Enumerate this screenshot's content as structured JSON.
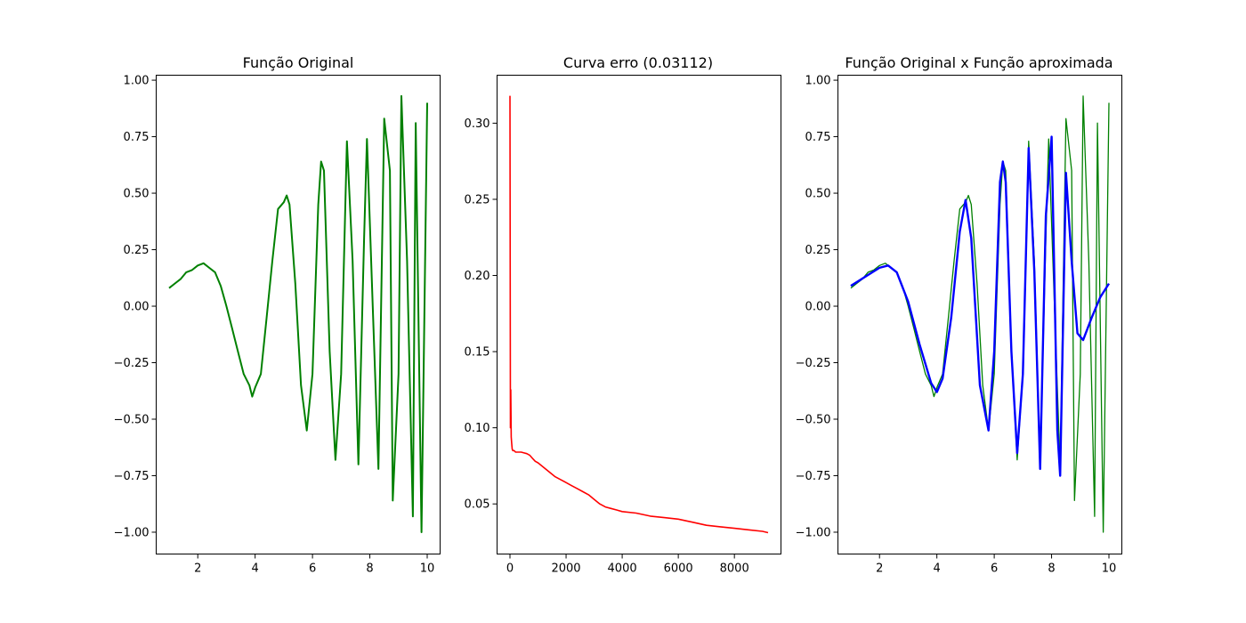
{
  "chart_data": [
    {
      "type": "line",
      "title": "Função Original",
      "xlabel": "",
      "ylabel": "",
      "xlim": [
        0.55,
        10.45
      ],
      "ylim": [
        -1.0966,
        1.022
      ],
      "xticks": [
        2,
        4,
        6,
        8,
        10
      ],
      "yticks": [
        -1.0,
        -0.75,
        -0.5,
        -0.25,
        0.0,
        0.25,
        0.5,
        0.75,
        1.0
      ],
      "xtick_labels": [
        "2",
        "4",
        "6",
        "8",
        "10"
      ],
      "ytick_labels": [
        "−1.00",
        "−0.75",
        "−0.50",
        "−0.25",
        "0.00",
        "0.25",
        "0.50",
        "0.75",
        "1.00"
      ],
      "grid": false,
      "series": [
        {
          "color": "#008000",
          "x": [
            1.0,
            1.2,
            1.4,
            1.6,
            1.8,
            2.0,
            2.2,
            2.4,
            2.6,
            2.8,
            3.0,
            3.2,
            3.4,
            3.6,
            3.8,
            3.9,
            4.0,
            4.2,
            4.4,
            4.6,
            4.8,
            5.0,
            5.1,
            5.2,
            5.4,
            5.6,
            5.8,
            6.0,
            6.2,
            6.3,
            6.4,
            6.6,
            6.8,
            7.0,
            7.2,
            7.4,
            7.6,
            7.8,
            7.9,
            8.1,
            8.3,
            8.5,
            8.7,
            8.8,
            9.0,
            9.1,
            9.3,
            9.5,
            9.6,
            9.8,
            10.0
          ],
          "y": [
            0.08,
            0.1,
            0.12,
            0.15,
            0.16,
            0.18,
            0.19,
            0.17,
            0.15,
            0.09,
            0.0,
            -0.1,
            -0.2,
            -0.3,
            -0.35,
            -0.4,
            -0.36,
            -0.3,
            -0.05,
            0.2,
            0.43,
            0.46,
            0.49,
            0.45,
            0.1,
            -0.35,
            -0.55,
            -0.3,
            0.45,
            0.64,
            0.6,
            -0.2,
            -0.68,
            -0.3,
            0.73,
            0.2,
            -0.7,
            0.3,
            0.74,
            0.0,
            -0.72,
            0.83,
            0.6,
            -0.86,
            -0.3,
            0.93,
            0.2,
            -0.93,
            0.81,
            -1.0,
            0.9
          ]
        }
      ]
    },
    {
      "type": "line",
      "title": "Curva erro (0.03112)",
      "xlabel": "",
      "ylabel": "",
      "xlim": [
        -460,
        9660
      ],
      "ylim": [
        0.0171,
        0.3315
      ],
      "xticks": [
        0,
        2000,
        4000,
        6000,
        8000
      ],
      "yticks": [
        0.05,
        0.1,
        0.15,
        0.2,
        0.25,
        0.3
      ],
      "xtick_labels": [
        "0",
        "2000",
        "4000",
        "6000",
        "8000"
      ],
      "ytick_labels": [
        "0.05",
        "0.10",
        "0.15",
        "0.20",
        "0.25",
        "0.30"
      ],
      "grid": false,
      "series": [
        {
          "color": "#ff0000",
          "x": [
            0,
            15,
            30,
            45,
            60,
            80,
            100,
            150,
            200,
            300,
            400,
            500,
            600,
            700,
            800,
            900,
            1000,
            1200,
            1400,
            1600,
            1800,
            2000,
            2200,
            2400,
            2600,
            2800,
            3000,
            3200,
            3400,
            3600,
            3800,
            4000,
            4500,
            5000,
            5500,
            6000,
            6500,
            7000,
            7500,
            8000,
            8500,
            9000,
            9200
          ],
          "y": [
            0.318,
            0.1,
            0.125,
            0.094,
            0.09,
            0.086,
            0.085,
            0.085,
            0.084,
            0.084,
            0.084,
            0.0835,
            0.083,
            0.082,
            0.08,
            0.078,
            0.077,
            0.074,
            0.071,
            0.068,
            0.066,
            0.064,
            0.062,
            0.06,
            0.058,
            0.056,
            0.053,
            0.05,
            0.048,
            0.047,
            0.046,
            0.045,
            0.044,
            0.042,
            0.041,
            0.04,
            0.038,
            0.036,
            0.035,
            0.034,
            0.033,
            0.032,
            0.0311
          ]
        }
      ]
    },
    {
      "type": "line",
      "title": "Função Original x Função aproximada",
      "xlabel": "",
      "ylabel": "",
      "xlim": [
        0.55,
        10.45
      ],
      "ylim": [
        -1.0966,
        1.022
      ],
      "xticks": [
        2,
        4,
        6,
        8,
        10
      ],
      "yticks": [
        -1.0,
        -0.75,
        -0.5,
        -0.25,
        0.0,
        0.25,
        0.5,
        0.75,
        1.0
      ],
      "xtick_labels": [
        "2",
        "4",
        "6",
        "8",
        "10"
      ],
      "ytick_labels": [
        "−1.00",
        "−0.75",
        "−0.50",
        "−0.25",
        "0.00",
        "0.25",
        "0.50",
        "0.75",
        "1.00"
      ],
      "grid": false,
      "series": [
        {
          "color": "#008000",
          "x": [
            1.0,
            1.2,
            1.4,
            1.6,
            1.8,
            2.0,
            2.2,
            2.4,
            2.6,
            2.8,
            3.0,
            3.2,
            3.4,
            3.6,
            3.8,
            3.9,
            4.0,
            4.2,
            4.4,
            4.6,
            4.8,
            5.0,
            5.1,
            5.2,
            5.4,
            5.6,
            5.8,
            6.0,
            6.2,
            6.3,
            6.4,
            6.6,
            6.8,
            7.0,
            7.2,
            7.4,
            7.6,
            7.8,
            7.9,
            8.1,
            8.3,
            8.5,
            8.7,
            8.8,
            9.0,
            9.1,
            9.3,
            9.5,
            9.6,
            9.8,
            10.0
          ],
          "y": [
            0.08,
            0.1,
            0.12,
            0.15,
            0.16,
            0.18,
            0.19,
            0.17,
            0.15,
            0.09,
            0.0,
            -0.1,
            -0.2,
            -0.3,
            -0.35,
            -0.4,
            -0.36,
            -0.3,
            -0.05,
            0.2,
            0.43,
            0.46,
            0.49,
            0.45,
            0.1,
            -0.35,
            -0.55,
            -0.3,
            0.45,
            0.64,
            0.6,
            -0.2,
            -0.68,
            -0.3,
            0.73,
            0.2,
            -0.7,
            0.3,
            0.74,
            0.0,
            -0.72,
            0.83,
            0.6,
            -0.86,
            -0.3,
            0.93,
            0.2,
            -0.93,
            0.81,
            -1.0,
            0.9
          ]
        },
        {
          "color": "#0000ff",
          "x": [
            1.0,
            1.5,
            2.0,
            2.3,
            2.6,
            3.0,
            3.4,
            3.8,
            4.0,
            4.2,
            4.5,
            4.8,
            5.0,
            5.2,
            5.5,
            5.8,
            6.0,
            6.2,
            6.3,
            6.4,
            6.6,
            6.8,
            7.0,
            7.2,
            7.4,
            7.6,
            7.8,
            8.0,
            8.2,
            8.3,
            8.5,
            8.7,
            8.9,
            9.1,
            9.4,
            9.7,
            10.0
          ],
          "y": [
            0.09,
            0.13,
            0.17,
            0.18,
            0.15,
            0.02,
            -0.17,
            -0.34,
            -0.38,
            -0.32,
            -0.05,
            0.33,
            0.47,
            0.3,
            -0.35,
            -0.55,
            -0.2,
            0.55,
            0.64,
            0.55,
            -0.2,
            -0.65,
            -0.3,
            0.7,
            0.15,
            -0.72,
            0.4,
            0.75,
            -0.55,
            -0.75,
            0.59,
            0.2,
            -0.12,
            -0.15,
            -0.05,
            0.04,
            0.1
          ]
        }
      ]
    }
  ]
}
